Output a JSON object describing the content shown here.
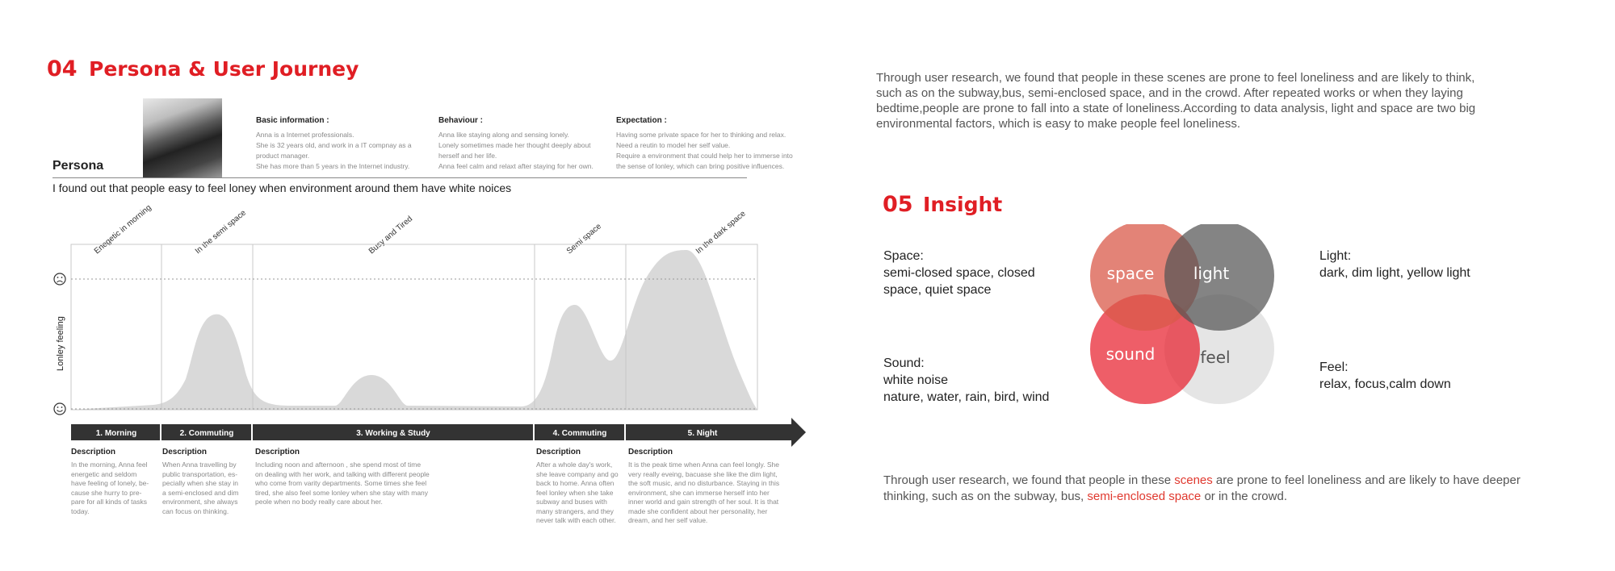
{
  "persona_section": {
    "number": "04",
    "title": "Persona & User Journey",
    "persona_label": "Persona",
    "basic": {
      "heading": "Basic information :",
      "lines": [
        "Anna is a Internet professionals.",
        "She is 32 years old, and work in a IT compnay as a",
        "product manager.",
        "She has more than 5 years in the Internet industry."
      ]
    },
    "behaviour": {
      "heading": "Behaviour :",
      "lines": [
        "Anna like staying along and sensing lonely.",
        "Lonely sometimes made her thought deeply about",
        "herself and her life.",
        "Anna feel calm and relaxt after staying for her own."
      ]
    },
    "expectation": {
      "heading": "Expectation :",
      "lines": [
        "Having some private space for her to thinking and relax.",
        "Need a reutin to model her self value.",
        "Require a environment that could help her to immerse into",
        "the sense of lonley, which can bring positive influences."
      ]
    },
    "statement": "I found out that people easy to feel loney when environment around them have white noices"
  },
  "journey": {
    "y_axis_label": "Lonley feeling",
    "scene_labels": [
      "Enegetic in morning",
      "In the semi space",
      "Busy and Tired",
      "Semi space",
      "In the dark space"
    ],
    "stages": [
      "1. Morning",
      "2. Commuting",
      "3. Working & Study",
      "4. Commuting",
      "5. Night"
    ],
    "descriptions": [
      {
        "heading": "Description",
        "lines": [
          "In the morning, Anna feel",
          "energetic and seldom",
          "have feeling of lonely, be-",
          "cause she hurry to pre-",
          "pare for all kinds of  tasks",
          "today."
        ]
      },
      {
        "heading": "Description",
        "lines": [
          "When Anna travelling by",
          "public transportation, es-",
          "pecially when she stay in",
          "a semi-enclosed and dim",
          "environment, she always",
          "can focus on thinking."
        ]
      },
      {
        "heading": "Description",
        "lines": [
          "Including noon and afternoon , she spend most of time",
          "on dealing with her work, and talking with different people",
          "who come from varity departments. Some times she feel",
          "tired, she also feel some lonley when she stay with many",
          "peole when no body really care about her."
        ]
      },
      {
        "heading": "Description",
        "lines": [
          "After a whole day's work,",
          "she leave company and go",
          "back to home. Anna often",
          "feel lonley when she take",
          "subway and buses with",
          "many strangers, and they",
          "never talk with each other."
        ]
      },
      {
        "heading": "Description",
        "lines": [
          "It is the peak time when Anna can feel longly. She",
          "very really eveing, bacuase she like the dim light,",
          "the soft music, and no disturbance. Staying in this",
          "environment, she can immerse herself into her",
          "inner world and gain strength of her soul. It is that",
          "made she confident about her personality, her",
          "dream, and her self value."
        ]
      }
    ]
  },
  "research_text": [
    "Through user research, we found that people in these scenes are prone to feel loneliness and are likely to think,",
    "such as on the subway,bus, semi-enclosed space, and in the crowd. After repeated works or when they laying",
    "bedtime,people are prone to fall into a state of loneliness.According to data analysis, light and space are two big",
    "environmental factors, which is easy to make people feel loneliness."
  ],
  "insight_section": {
    "number": "05",
    "title": "Insight",
    "space": {
      "heading": "Space:",
      "lines": [
        "semi-closed space, closed",
        "space, quiet space"
      ]
    },
    "sound": {
      "heading": "Sound:",
      "lines": [
        "white noise",
        "nature, water, rain, bird, wind"
      ]
    },
    "light": {
      "heading": "Light:",
      "lines": [
        "dark, dim light, yellow light"
      ]
    },
    "feel": {
      "heading": "Feel:",
      "lines": [
        "relax, focus,calm down"
      ]
    },
    "venn": {
      "space": "space",
      "light": "light",
      "sound": "sound",
      "feel": "feel"
    },
    "conclusion": {
      "p1": "Through user research, we found that people in these ",
      "scenes": "scenes",
      "p2": " are prone to feel loneliness and are likely to have deeper",
      "p3": "thinking, such as on the subway, bus, ",
      "semi": "semi-enclosed space",
      "p4": " or in the crowd."
    }
  },
  "colors": {
    "accent": "#e01e24",
    "dark_bar": "#333333",
    "curve": "#d9d9d9"
  }
}
